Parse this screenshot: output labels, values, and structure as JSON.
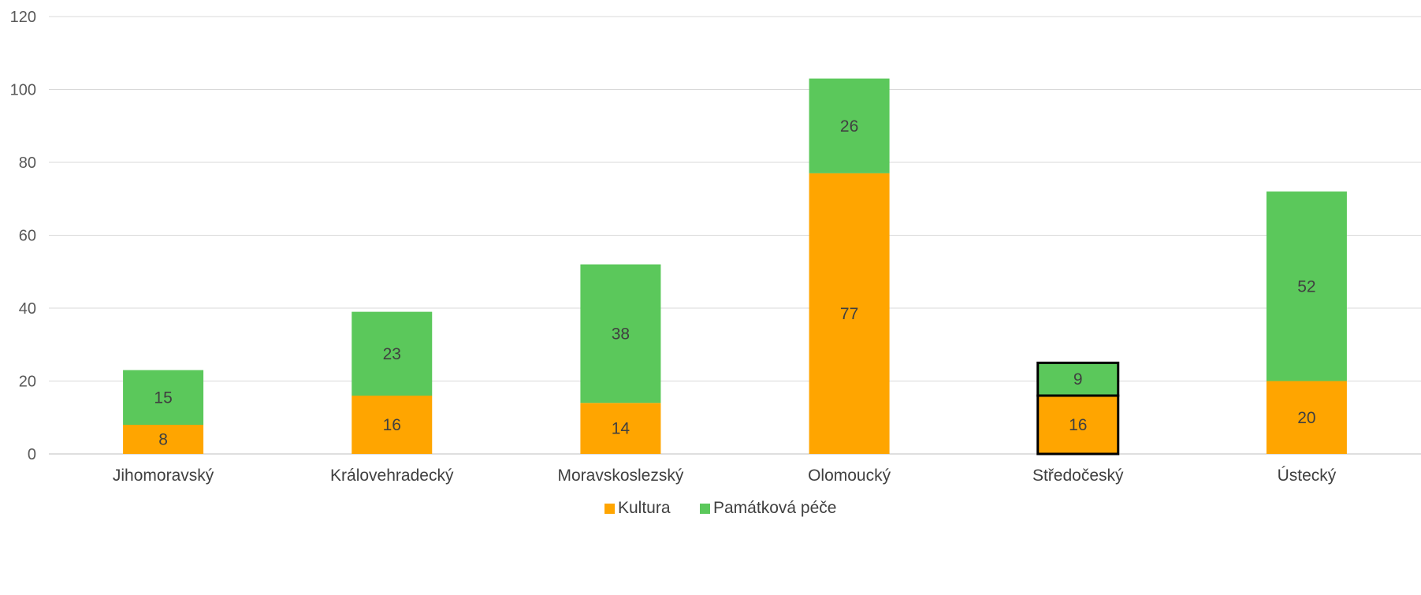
{
  "chart_data": {
    "type": "bar",
    "stacked": true,
    "categories": [
      "Jihomoravský",
      "Královehradecký",
      "Moravskoslezský",
      "Olomoucký",
      "Středočeský",
      "Ústecký"
    ],
    "series": [
      {
        "name": "Kultura",
        "color": "#FFA500",
        "values": [
          8,
          16,
          14,
          77,
          16,
          20
        ]
      },
      {
        "name": "Památková péče",
        "color": "#5BC85B",
        "values": [
          15,
          23,
          38,
          26,
          9,
          52
        ]
      }
    ],
    "ylim": [
      0,
      120
    ],
    "yticks": [
      0,
      20,
      40,
      60,
      80,
      100,
      120
    ],
    "grid": true,
    "legend": "bottom",
    "highlighted_category": "Středočeský"
  }
}
